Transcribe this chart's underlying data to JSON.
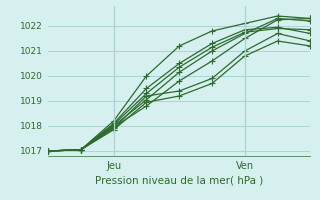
{
  "title": "",
  "xlabel": "Pression niveau de la mer( hPa )",
  "ylabel": "",
  "bg_color": "#d6f0f0",
  "grid_color": "#aad4d4",
  "line_color": "#2d6a2d",
  "ylim": [
    1016.8,
    1022.8
  ],
  "xlim": [
    0,
    48
  ],
  "yticks": [
    1017,
    1018,
    1019,
    1020,
    1021,
    1022
  ],
  "xtick_positions": [
    12,
    36
  ],
  "xtick_labels": [
    "Jeu",
    "Ven"
  ],
  "vlines": [
    12,
    36
  ],
  "series": [
    [
      0,
      1017.0,
      6,
      1017.05,
      12,
      1017.95,
      18,
      1018.8,
      24,
      1019.8,
      30,
      1020.6,
      36,
      1021.5,
      42,
      1022.25,
      48,
      1022.3
    ],
    [
      0,
      1017.0,
      6,
      1017.05,
      12,
      1018.0,
      18,
      1019.05,
      24,
      1020.15,
      30,
      1021.0,
      36,
      1021.7,
      42,
      1022.3,
      48,
      1022.2
    ],
    [
      0,
      1017.0,
      6,
      1017.05,
      12,
      1018.05,
      18,
      1019.3,
      24,
      1020.35,
      30,
      1021.15,
      36,
      1021.75,
      42,
      1021.9,
      48,
      1021.85
    ],
    [
      0,
      1017.0,
      6,
      1017.05,
      12,
      1018.1,
      18,
      1019.5,
      24,
      1020.5,
      30,
      1021.3,
      36,
      1021.85,
      42,
      1021.95,
      48,
      1021.7
    ],
    [
      0,
      1017.0,
      6,
      1017.05,
      12,
      1018.2,
      18,
      1020.0,
      24,
      1021.2,
      30,
      1021.8,
      36,
      1022.1,
      42,
      1022.4,
      48,
      1022.3
    ],
    [
      0,
      1017.0,
      6,
      1017.05,
      12,
      1017.9,
      18,
      1019.2,
      24,
      1019.4,
      30,
      1019.9,
      36,
      1021.0,
      42,
      1021.7,
      48,
      1021.4
    ],
    [
      0,
      1017.0,
      6,
      1017.05,
      12,
      1017.85,
      18,
      1018.95,
      24,
      1019.2,
      30,
      1019.7,
      36,
      1020.8,
      42,
      1021.4,
      48,
      1021.2
    ]
  ],
  "marker": "+",
  "marker_size": 4.0,
  "linewidth": 0.9
}
